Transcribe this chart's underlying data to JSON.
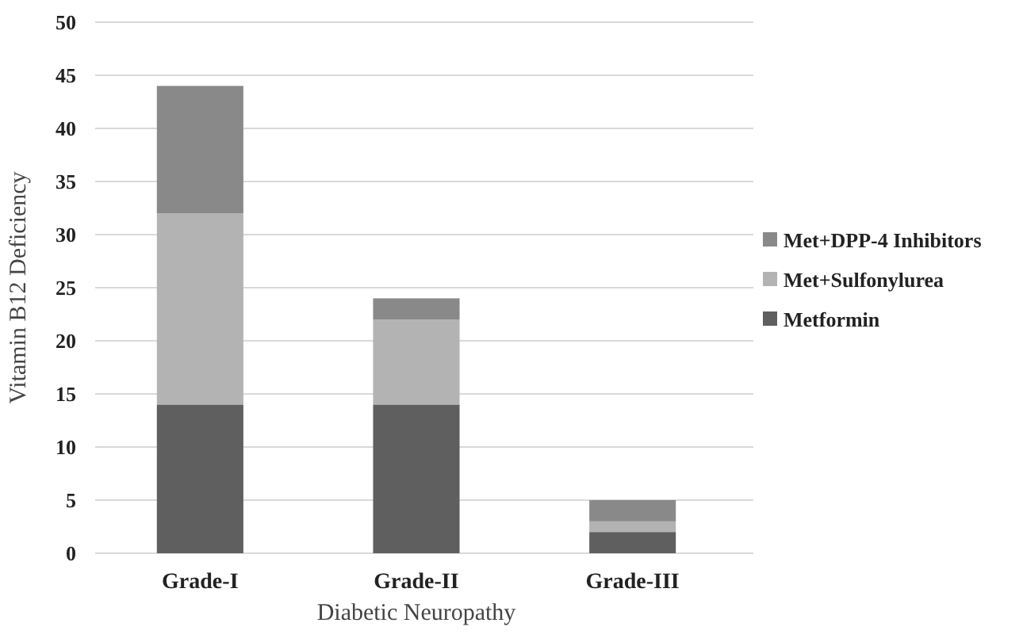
{
  "chart_data": {
    "type": "bar",
    "stacked": true,
    "xlabel": "Diabetic Neuropathy",
    "ylabel": "Vitamin B12 Deficiency",
    "categories": [
      "Grade-I",
      "Grade-II",
      "Grade-III"
    ],
    "series": [
      {
        "name": "Metformin",
        "color": "#5f5f5f",
        "values": [
          14,
          14,
          2
        ]
      },
      {
        "name": "Met+Sulfonylurea",
        "color": "#b3b3b3",
        "values": [
          18,
          8,
          1
        ]
      },
      {
        "name": "Met+DPP-4 Inhibitors",
        "color": "#898989",
        "values": [
          12,
          2,
          2
        ]
      }
    ],
    "ylim": [
      0,
      50
    ],
    "yticks": [
      0,
      5,
      10,
      15,
      20,
      25,
      30,
      35,
      40,
      45,
      50
    ],
    "grid": "y",
    "legend": "right"
  }
}
